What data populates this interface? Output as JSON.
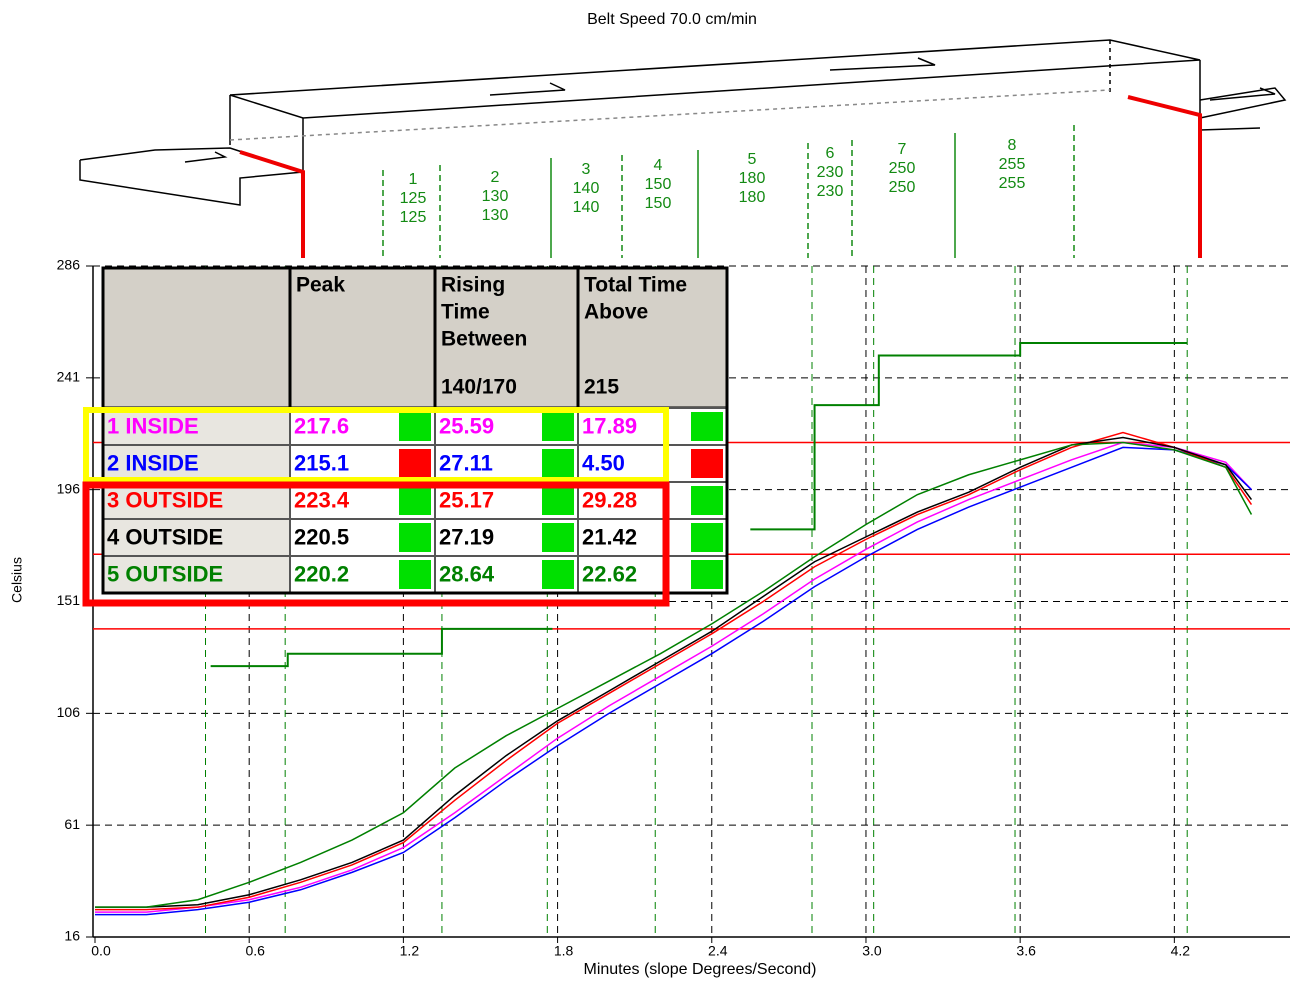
{
  "chart_data": {
    "type": "line",
    "title": "Belt Speed 70.0 cm/min",
    "xlabel": "Minutes (slope Degrees/Second)",
    "ylabel": "Celsius",
    "xlim": [
      0,
      4.65
    ],
    "ylim": [
      16,
      286
    ],
    "xticks": [
      {
        "value": 0,
        "label": "0.0"
      },
      0.6,
      1.2,
      1.8,
      2.4,
      {
        "value": 3,
        "label": "3.0"
      },
      3.6,
      4.2
    ],
    "yticks": [
      16,
      61,
      106,
      151,
      196,
      241,
      286
    ],
    "grid": true,
    "x": [
      0,
      0.2,
      0.4,
      0.6,
      0.8,
      1.0,
      1.2,
      1.4,
      1.6,
      1.8,
      2.0,
      2.2,
      2.4,
      2.6,
      2.8,
      3.0,
      3.2,
      3.4,
      3.6,
      3.8,
      4.0,
      4.2,
      4.4,
      4.5
    ],
    "series": [
      {
        "name": "1 INSIDE",
        "color": "#ff00ff",
        "values": [
          26,
          26,
          28,
          31,
          36,
          43,
          52,
          66,
          81,
          96,
          109,
          121,
          133,
          146,
          160,
          172,
          183,
          192,
          200,
          208,
          215,
          213,
          207,
          196
        ],
        "peak": "217.6",
        "rising_time": "25.59",
        "time_above": "17.89",
        "status": [
          "#00e000",
          "#00e000",
          "#00e000"
        ]
      },
      {
        "name": "2 INSIDE",
        "color": "#0000ff",
        "values": [
          25,
          25,
          27,
          30,
          35,
          42,
          50,
          64,
          79,
          93,
          106,
          118,
          130,
          143,
          157,
          169,
          180,
          189,
          197,
          205,
          213,
          212,
          206,
          196
        ],
        "peak": "215.1",
        "rising_time": "27.11",
        "time_above": "4.50",
        "status": [
          "#ff0000",
          "#00e000",
          "#ff0000"
        ]
      },
      {
        "name": "3 OUTSIDE",
        "color": "#ff0000",
        "values": [
          27,
          27,
          28,
          32,
          38,
          45,
          54,
          71,
          87,
          102,
          114,
          126,
          138,
          151,
          165,
          176,
          186,
          194,
          204,
          213,
          219,
          213,
          205,
          190
        ],
        "peak": "223.4",
        "rising_time": "25.17",
        "time_above": "29.28",
        "status": [
          "#00e000",
          "#00e000",
          "#00e000"
        ]
      },
      {
        "name": "4 OUTSIDE",
        "color": "#000000",
        "values": [
          28,
          28,
          29,
          33,
          39,
          46,
          55,
          73,
          89,
          103,
          115,
          127,
          139,
          153,
          167,
          177,
          187,
          195,
          205,
          214,
          217,
          213,
          206,
          192
        ],
        "peak": "220.5",
        "rising_time": "27.19",
        "time_above": "21.42",
        "status": [
          "#00e000",
          "#00e000",
          "#00e000"
        ]
      },
      {
        "name": "5 OUTSIDE",
        "color": "#008000",
        "values": [
          28,
          28,
          31,
          38,
          46,
          55,
          66,
          84,
          97,
          108,
          119,
          130,
          142,
          155,
          169,
          182,
          194,
          202,
          208,
          214,
          215,
          212,
          205,
          186
        ],
        "peak": "220.2",
        "rising_time": "28.64",
        "time_above": "22.62",
        "status": [
          "#00e000",
          "#00e000",
          "#00e000"
        ]
      }
    ],
    "table_headers": [
      [
        "Peak"
      ],
      [
        "Rising",
        "Time",
        "Between",
        "140/170"
      ],
      [
        "Total Time",
        "Above",
        "215"
      ]
    ],
    "limit_lines": [
      140,
      170,
      215
    ],
    "limit_color": "#ff0000",
    "zone_boundaries": [
      0.43,
      0.74,
      1.35,
      1.76,
      2.18,
      2.79,
      3.03,
      3.58,
      4.25
    ],
    "profile_color": "#008000",
    "setpoint_segments": [
      {
        "x": [
          0.45,
          0.75,
          0.75,
          1.35,
          1.35,
          1.78
        ],
        "values": [
          125,
          125,
          130,
          130,
          140,
          140
        ]
      },
      {
        "x": [
          2.55,
          2.8,
          2.8,
          3.05,
          3.05,
          3.6,
          3.6,
          4.25
        ],
        "values": [
          180,
          180,
          230,
          230,
          250,
          250,
          255,
          255
        ]
      }
    ]
  },
  "oven": {
    "zones": [
      {
        "number": "1",
        "top": "125",
        "bottom": "125"
      },
      {
        "number": "2",
        "top": "130",
        "bottom": "130"
      },
      {
        "number": "3",
        "top": "140",
        "bottom": "140"
      },
      {
        "number": "4",
        "top": "150",
        "bottom": "150"
      },
      {
        "number": "5",
        "top": "180",
        "bottom": "180"
      },
      {
        "number": "6",
        "top": "230",
        "bottom": "230"
      },
      {
        "number": "7",
        "top": "250",
        "bottom": "250"
      },
      {
        "number": "8",
        "top": "255",
        "bottom": "255"
      }
    ]
  }
}
